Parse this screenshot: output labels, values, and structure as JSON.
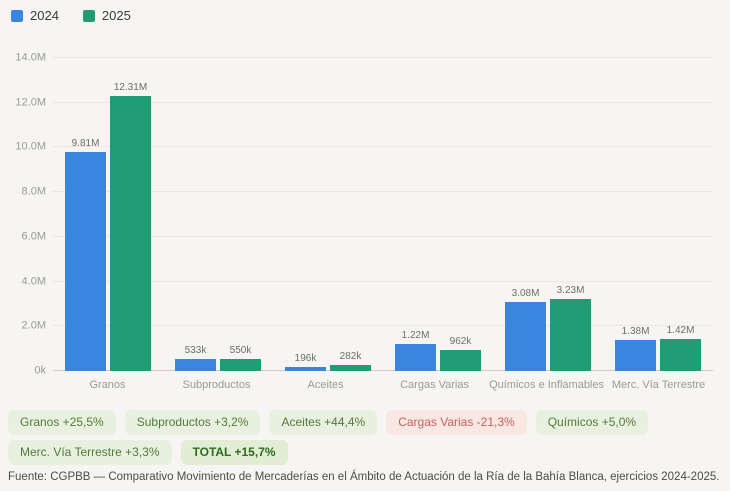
{
  "legend": {
    "items": [
      {
        "label": "2024",
        "color": "#3a86de"
      },
      {
        "label": "2025",
        "color": "#219d76"
      }
    ]
  },
  "chart_data": {
    "type": "bar",
    "title": "",
    "xlabel": "",
    "ylabel": "",
    "categories": [
      "Granos",
      "Subproductos",
      "Aceites",
      "Cargas Varias",
      "Químicos e Inflamables",
      "Merc. Vía Terrestre"
    ],
    "series": [
      {
        "name": "2024",
        "color": "#3a86de",
        "values": [
          9810000,
          533000,
          196000,
          1220000,
          3080000,
          1380000
        ],
        "labels": [
          "9.81M",
          "533k",
          "196k",
          "1.22M",
          "3.08M",
          "1.38M"
        ]
      },
      {
        "name": "2025",
        "color": "#219d76",
        "values": [
          12310000,
          550000,
          282000,
          962000,
          3230000,
          1420000
        ],
        "labels": [
          "12.31M",
          "550k",
          "282k",
          "962k",
          "3.23M",
          "1.42M"
        ]
      }
    ],
    "ylim": [
      0,
      14000000
    ],
    "yticks": [
      {
        "value": 0,
        "label": "0k"
      },
      {
        "value": 2000000,
        "label": "2.0M"
      },
      {
        "value": 4000000,
        "label": "4.0M"
      },
      {
        "value": 6000000,
        "label": "6.0M"
      },
      {
        "value": 8000000,
        "label": "8.0M"
      },
      {
        "value": 10000000,
        "label": "10.0M"
      },
      {
        "value": 12000000,
        "label": "12.0M"
      },
      {
        "value": 14000000,
        "label": "14.0M"
      }
    ],
    "grid": true,
    "legend_position": "top-left"
  },
  "badges": {
    "items": [
      {
        "label": "Granos +25,5%",
        "type": "positive"
      },
      {
        "label": "Subproductos +3,2%",
        "type": "positive"
      },
      {
        "label": "Aceites +44,4%",
        "type": "positive"
      },
      {
        "label": "Cargas Varias -21,3%",
        "type": "negative"
      },
      {
        "label": "Químicos +5,0%",
        "type": "positive"
      },
      {
        "label": "Merc. Vía Terrestre +3,3%",
        "type": "positive"
      },
      {
        "label": "TOTAL +15,7%",
        "type": "total"
      }
    ]
  },
  "footer": {
    "source": "Fuente: CGPBB — Comparativo Movimiento de Mercaderías en el Ámbito de Actuación de la Ría de la Bahía Blanca, ejercicios 2024-2025."
  },
  "colors": {
    "page_background": "#f6f5f3",
    "grid_line": "#eae8e5",
    "baseline": "#cfcecb",
    "axis_text": "#9a9a98",
    "value_label_text": "#6e6e6c",
    "positive_badge_bg": "#e8f0df",
    "positive_badge_text": "#547a3b",
    "negative_badge_bg": "#fae7e4",
    "negative_badge_text": "#c4625b",
    "total_badge_bg": "#e2eed4",
    "total_badge_text": "#2e6a23"
  }
}
